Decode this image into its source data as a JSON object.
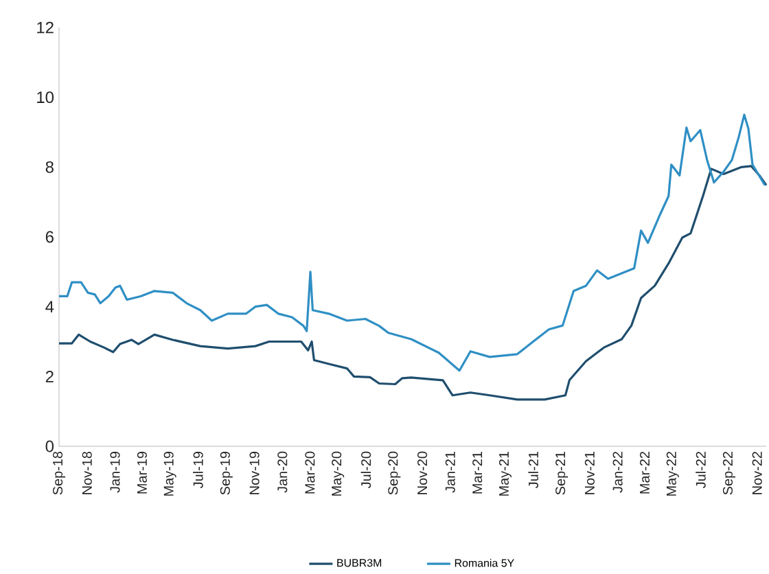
{
  "chart_data": {
    "type": "line",
    "xlim": [
      "2018-09-01",
      "2022-11-21"
    ],
    "ylim": [
      0,
      12
    ],
    "yticks": [
      0,
      2,
      4,
      6,
      8,
      10,
      12
    ],
    "xticks": [
      {
        "value": "2018-09-01",
        "label": "Sep-18"
      },
      {
        "value": "2018-11-01",
        "label": "Nov-18"
      },
      {
        "value": "2019-01-01",
        "label": "Jan-19"
      },
      {
        "value": "2019-03-01",
        "label": "Mar-19"
      },
      {
        "value": "2019-05-01",
        "label": "May-19"
      },
      {
        "value": "2019-07-01",
        "label": "Jul-19"
      },
      {
        "value": "2019-09-01",
        "label": "Sep-19"
      },
      {
        "value": "2019-11-01",
        "label": "Nov-19"
      },
      {
        "value": "2020-01-01",
        "label": "Jan-20"
      },
      {
        "value": "2020-03-01",
        "label": "Mar-20"
      },
      {
        "value": "2020-05-01",
        "label": "May-20"
      },
      {
        "value": "2020-07-01",
        "label": "Jul-20"
      },
      {
        "value": "2020-09-01",
        "label": "Sep-20"
      },
      {
        "value": "2020-11-01",
        "label": "Nov-20"
      },
      {
        "value": "2021-01-01",
        "label": "Jan-21"
      },
      {
        "value": "2021-03-01",
        "label": "Mar-21"
      },
      {
        "value": "2021-05-01",
        "label": "May-21"
      },
      {
        "value": "2021-07-01",
        "label": "Jul-21"
      },
      {
        "value": "2021-09-01",
        "label": "Sep-21"
      },
      {
        "value": "2021-11-01",
        "label": "Nov-21"
      },
      {
        "value": "2022-01-01",
        "label": "Jan-22"
      },
      {
        "value": "2022-03-01",
        "label": "Mar-22"
      },
      {
        "value": "2022-05-01",
        "label": "May-22"
      },
      {
        "value": "2022-07-01",
        "label": "Jul-22"
      },
      {
        "value": "2022-09-01",
        "label": "Sep-22"
      },
      {
        "value": "2022-11-01",
        "label": "Nov-22"
      }
    ],
    "legend": "bottom",
    "grid": false,
    "series": [
      {
        "name": "BUBR3M",
        "color": "#1f4e6e",
        "x": [
          "2018-09-01",
          "2018-09-29",
          "2018-10-14",
          "2018-11-08",
          "2018-12-08",
          "2018-12-28",
          "2019-01-12",
          "2019-02-06",
          "2019-02-21",
          "2019-03-28",
          "2019-05-07",
          "2019-07-06",
          "2019-09-04",
          "2019-11-03",
          "2019-12-03",
          "2020-02-11",
          "2020-02-26",
          "2020-03-05",
          "2020-03-10",
          "2020-04-11",
          "2020-05-21",
          "2020-06-05",
          "2020-07-10",
          "2020-07-30",
          "2020-09-03",
          "2020-09-18",
          "2020-10-08",
          "2020-12-16",
          "2021-01-06",
          "2021-02-14",
          "2021-03-28",
          "2021-05-27",
          "2021-07-26",
          "2021-09-09",
          "2021-09-18",
          "2021-10-24",
          "2021-12-02",
          "2022-01-10",
          "2022-01-31",
          "2022-02-21",
          "2022-03-23",
          "2022-04-22",
          "2022-05-22",
          "2022-06-09",
          "2022-07-06",
          "2022-07-24",
          "2022-08-20",
          "2022-09-28",
          "2022-10-19",
          "2022-11-06",
          "2022-11-21"
        ],
        "values": [
          2.95,
          2.95,
          3.2,
          3.0,
          2.83,
          2.7,
          2.93,
          3.05,
          2.93,
          3.2,
          3.05,
          2.87,
          2.8,
          2.87,
          3.0,
          3.0,
          2.75,
          3.0,
          2.47,
          2.36,
          2.23,
          2.0,
          1.98,
          1.8,
          1.78,
          1.95,
          1.97,
          1.89,
          1.46,
          1.54,
          1.46,
          1.34,
          1.34,
          1.46,
          1.9,
          2.44,
          2.83,
          3.07,
          3.46,
          4.25,
          4.6,
          5.24,
          5.98,
          6.1,
          7.17,
          7.95,
          7.8,
          8.0,
          8.03,
          7.76,
          7.48
        ]
      },
      {
        "name": "Romania 5Y",
        "color": "#2f8fc4",
        "x": [
          "2018-09-01",
          "2018-09-19",
          "2018-09-29",
          "2018-10-19",
          "2018-11-03",
          "2018-11-18",
          "2018-11-30",
          "2018-12-18",
          "2019-01-02",
          "2019-01-12",
          "2019-01-27",
          "2019-02-26",
          "2019-03-28",
          "2019-05-07",
          "2019-06-06",
          "2019-07-06",
          "2019-07-31",
          "2019-09-04",
          "2019-10-14",
          "2019-11-03",
          "2019-11-28",
          "2019-12-23",
          "2020-01-22",
          "2020-02-16",
          "2020-02-23",
          "2020-03-02",
          "2020-03-07",
          "2020-04-11",
          "2020-05-21",
          "2020-06-30",
          "2020-07-30",
          "2020-08-19",
          "2020-10-08",
          "2020-12-07",
          "2021-01-21",
          "2021-02-14",
          "2021-03-28",
          "2021-05-27",
          "2021-06-26",
          "2021-08-04",
          "2021-09-03",
          "2021-09-27",
          "2021-10-24",
          "2021-11-17",
          "2021-12-11",
          "2022-02-06",
          "2022-02-21",
          "2022-03-08",
          "2022-04-01",
          "2022-04-22",
          "2022-04-28",
          "2022-05-16",
          "2022-05-31",
          "2022-06-09",
          "2022-06-30",
          "2022-07-15",
          "2022-07-30",
          "2022-08-20",
          "2022-09-07",
          "2022-09-22",
          "2022-10-04",
          "2022-10-13",
          "2022-10-22",
          "2022-11-18"
        ],
        "values": [
          4.3,
          4.3,
          4.7,
          4.7,
          4.4,
          4.35,
          4.1,
          4.3,
          4.55,
          4.6,
          4.2,
          4.3,
          4.45,
          4.4,
          4.1,
          3.9,
          3.6,
          3.8,
          3.8,
          4.0,
          4.05,
          3.8,
          3.7,
          3.45,
          3.3,
          5.0,
          3.9,
          3.8,
          3.6,
          3.65,
          3.45,
          3.25,
          3.07,
          2.68,
          2.17,
          2.72,
          2.56,
          2.64,
          2.95,
          3.35,
          3.46,
          4.45,
          4.6,
          5.04,
          4.8,
          5.1,
          6.18,
          5.83,
          6.57,
          7.17,
          8.07,
          7.76,
          9.13,
          8.74,
          9.06,
          8.2,
          7.56,
          7.87,
          8.2,
          8.86,
          9.5,
          9.1,
          8.07,
          7.48
        ]
      }
    ]
  }
}
